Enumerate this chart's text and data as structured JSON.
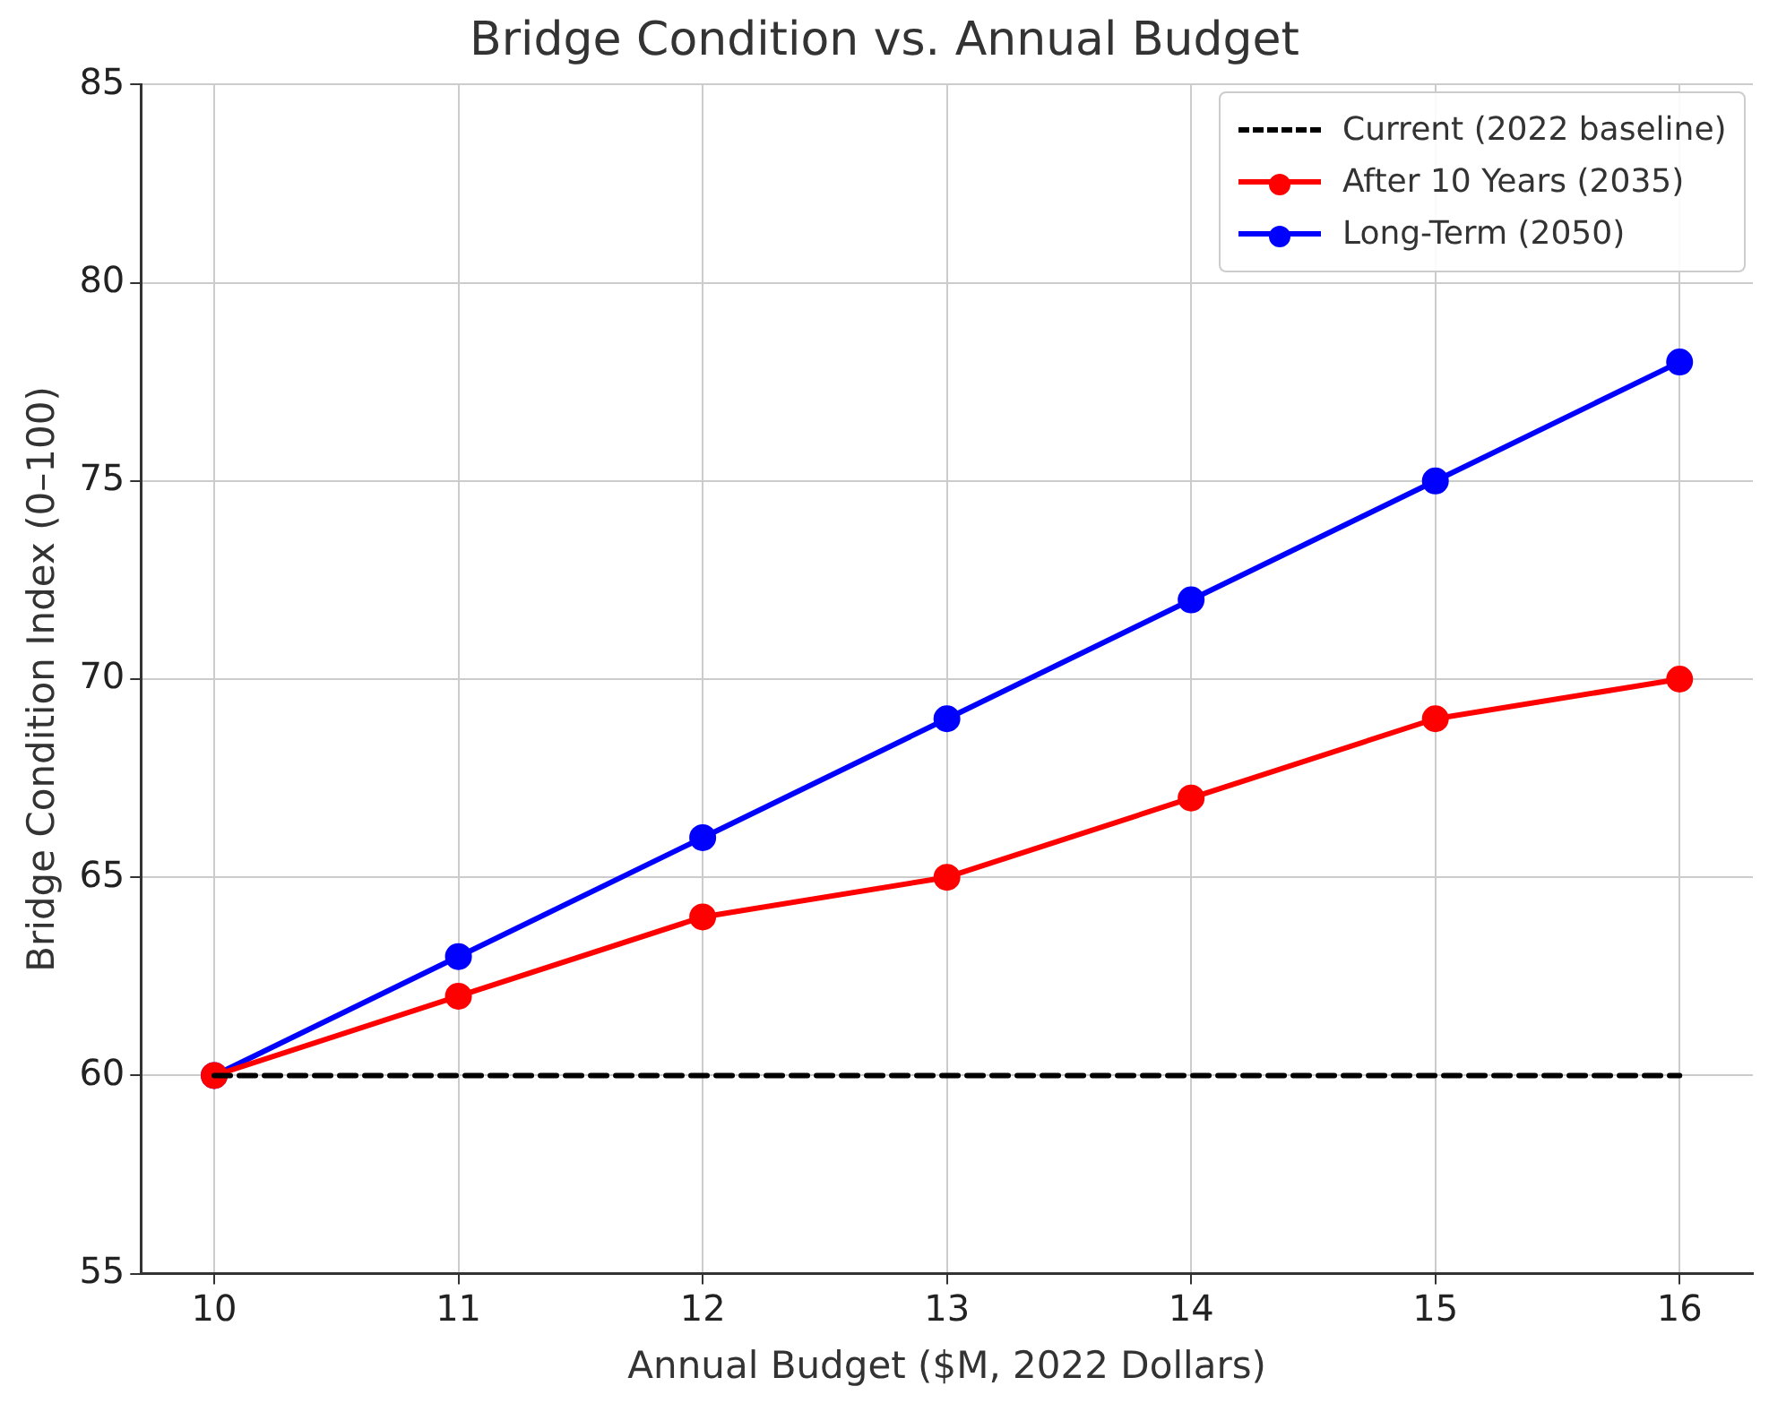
{
  "chart_data": {
    "type": "line",
    "title": "Bridge Condition vs. Annual Budget",
    "xlabel": "Annual Budget ($M, 2022 Dollars)",
    "ylabel": "Bridge Condition Index (0–100)",
    "x": [
      10,
      11,
      12,
      13,
      14,
      15,
      16
    ],
    "series": [
      {
        "name": "Current (2022 baseline)",
        "color": "#000000",
        "line_style": "dashed",
        "marker": "none",
        "values": [
          60,
          60,
          60,
          60,
          60,
          60,
          60
        ]
      },
      {
        "name": "After 10 Years (2035)",
        "color": "#ff0000",
        "line_style": "solid",
        "marker": "circle",
        "values": [
          60,
          62,
          64,
          65,
          67,
          69,
          70
        ]
      },
      {
        "name": "Long-Term (2050)",
        "color": "#0000ff",
        "line_style": "solid",
        "marker": "circle",
        "values": [
          60,
          63,
          66,
          69,
          72,
          75,
          78
        ]
      }
    ],
    "xlim": [
      9.7,
      16.3
    ],
    "xticks": [
      10,
      11,
      12,
      13,
      14,
      15,
      16
    ],
    "ylim": [
      55,
      85
    ],
    "yticks": [
      55,
      60,
      65,
      70,
      75,
      80,
      85
    ],
    "grid": true,
    "legend": "top right"
  }
}
